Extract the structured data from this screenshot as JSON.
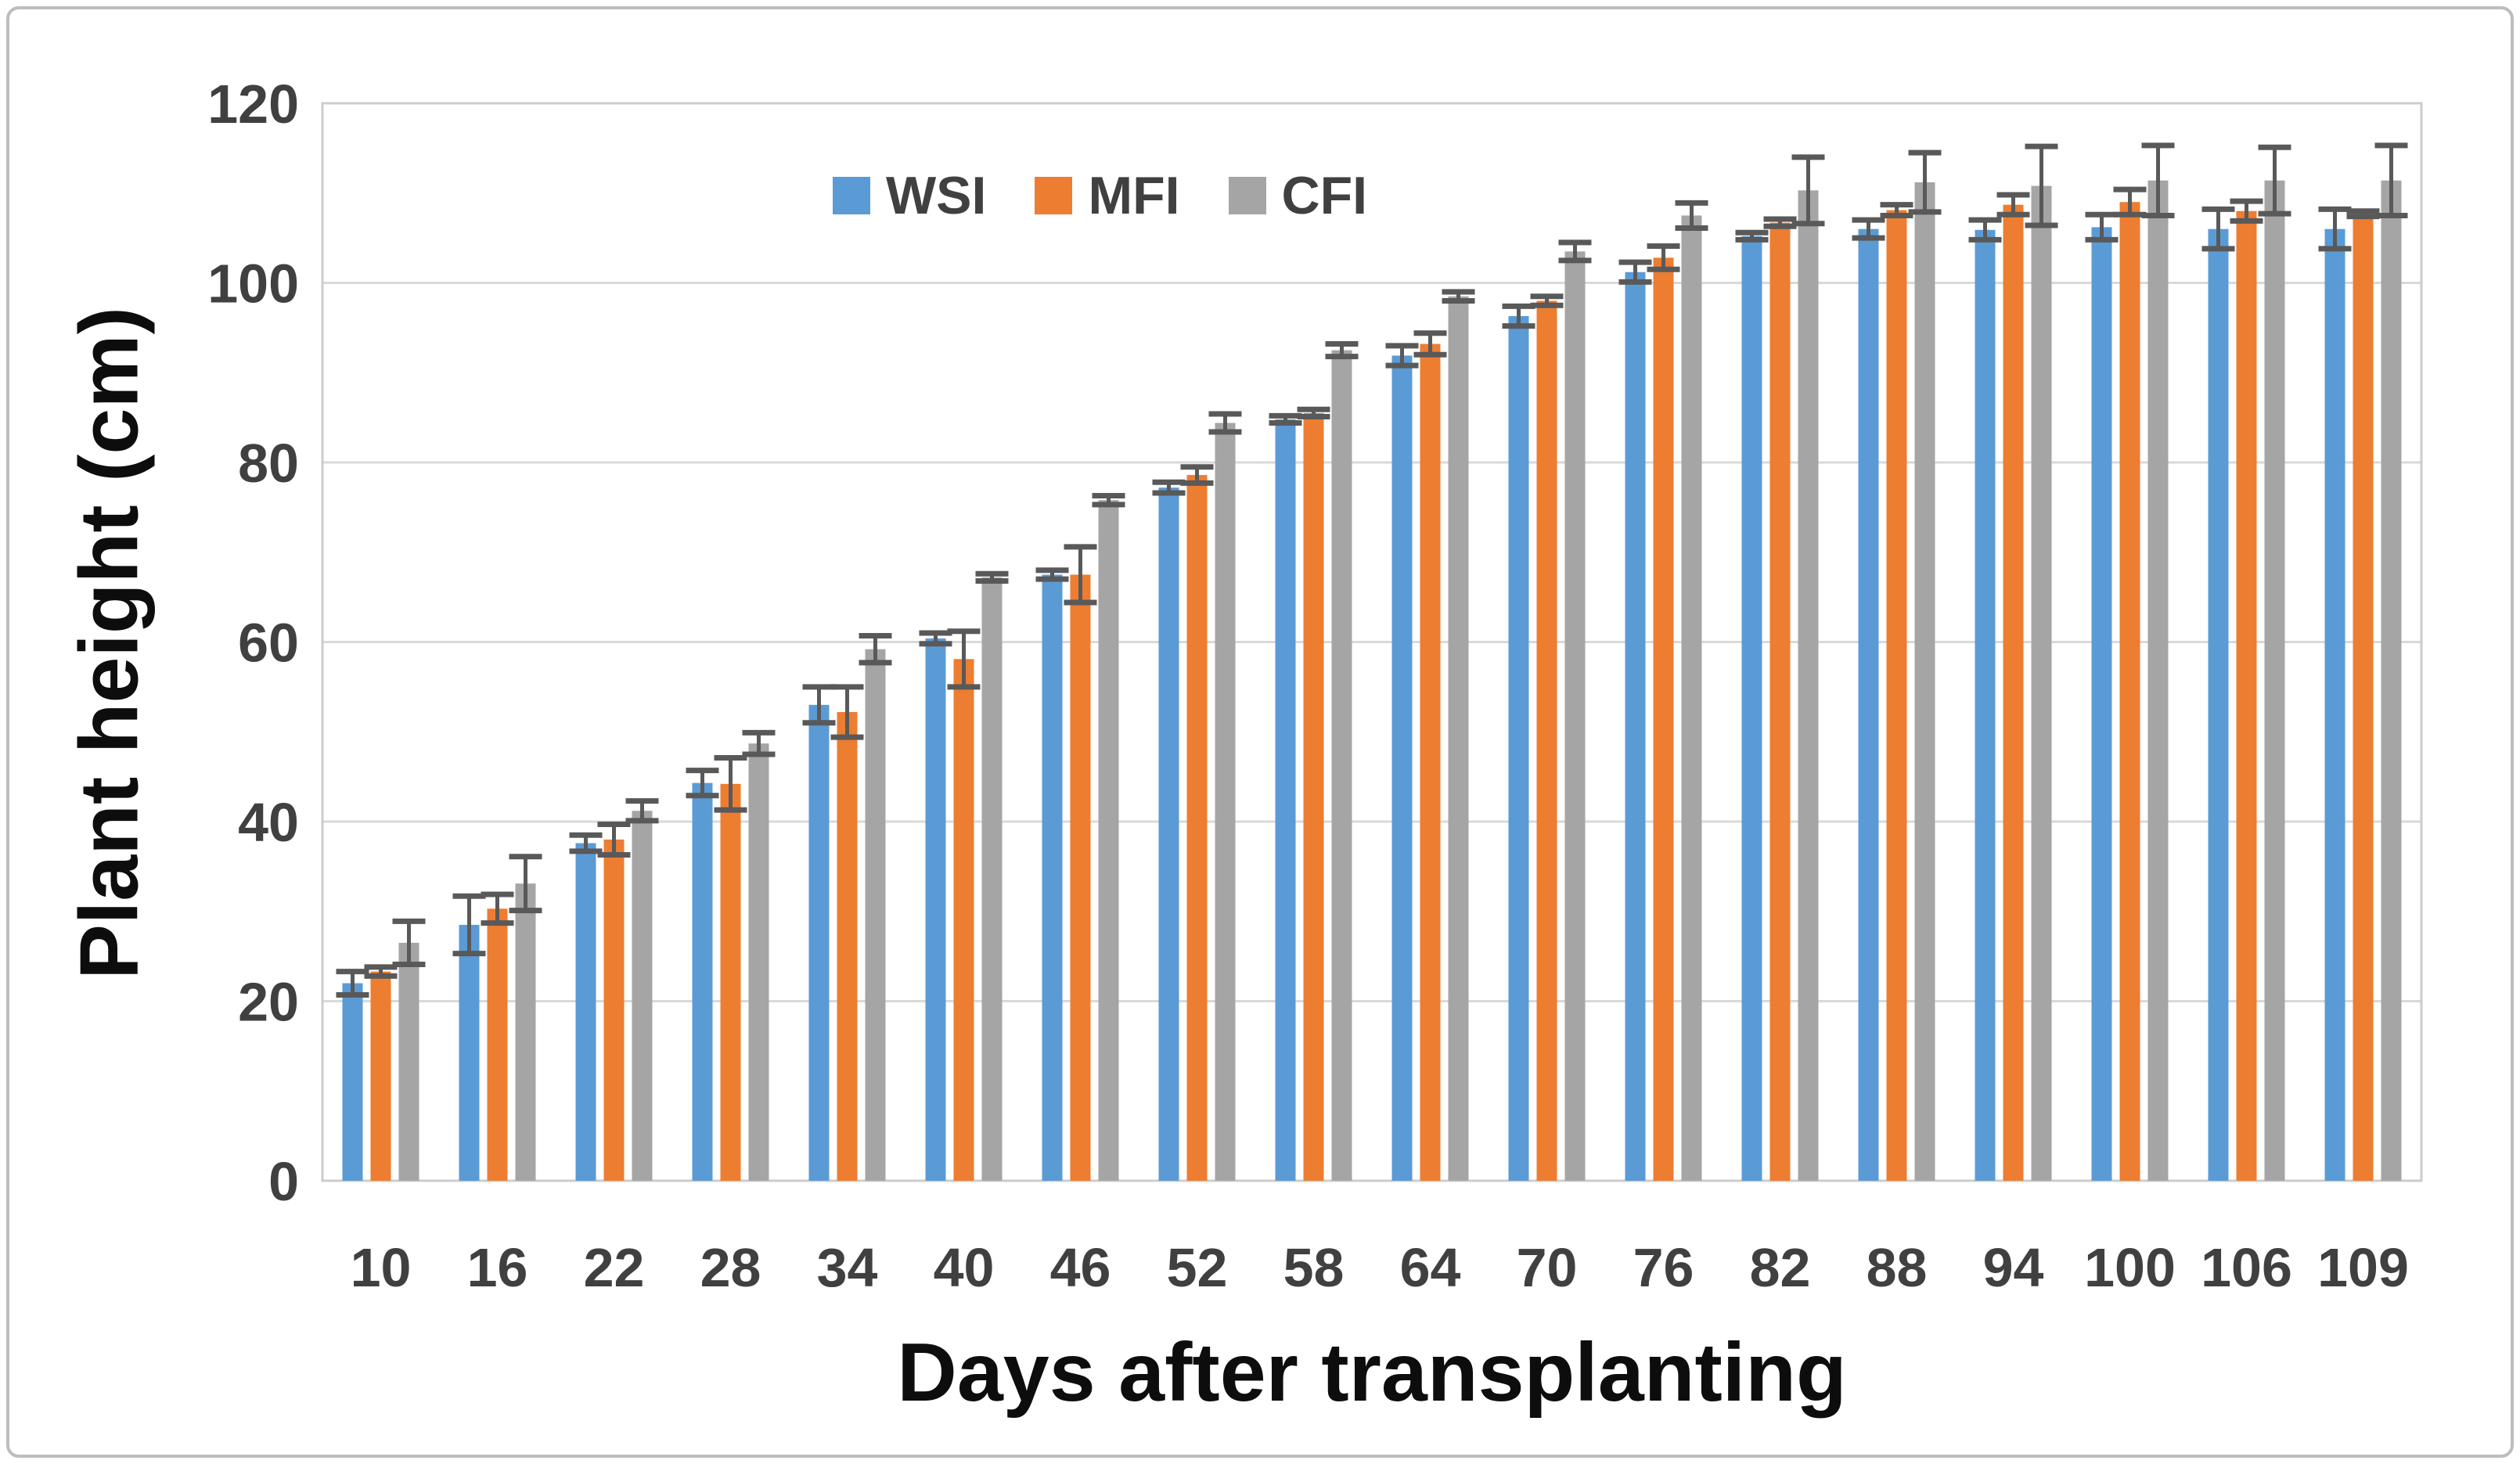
{
  "figure": {
    "border_color": "#bdbdbd",
    "background_color": "#ffffff"
  },
  "chart_data": {
    "type": "bar",
    "title": "",
    "xlabel": "Days after transplanting",
    "ylabel": "Plant height (cm)",
    "ylim": [
      0,
      120
    ],
    "yticks": [
      0,
      20,
      40,
      60,
      80,
      100,
      120
    ],
    "grid": true,
    "legend_position": "top-center-inside",
    "gridline_color": "#d9d9d9",
    "plot_border_color": "#cccccc",
    "error_bar_color": "#595959",
    "tick_label_color": "#404040",
    "categories": [
      "10",
      "16",
      "22",
      "28",
      "34",
      "40",
      "46",
      "52",
      "58",
      "64",
      "70",
      "76",
      "82",
      "88",
      "94",
      "100",
      "106",
      "109"
    ],
    "series": [
      {
        "name": "WSI",
        "color": "#5b9bd5",
        "values": [
          22.0,
          28.5,
          37.6,
          44.3,
          53.0,
          60.4,
          67.5,
          77.2,
          84.8,
          91.9,
          96.3,
          101.2,
          105.2,
          106.0,
          105.9,
          106.2,
          106.0,
          106.0
        ],
        "errors": [
          1.3,
          3.2,
          0.9,
          1.4,
          2.0,
          0.6,
          0.5,
          0.6,
          0.4,
          1.1,
          1.1,
          1.1,
          0.4,
          1.0,
          1.1,
          1.4,
          2.2,
          2.2
        ]
      },
      {
        "name": "MFI",
        "color": "#ed7d31",
        "values": [
          23.3,
          30.3,
          38.0,
          44.2,
          52.2,
          58.1,
          67.5,
          78.6,
          85.5,
          93.2,
          98.0,
          102.8,
          106.7,
          108.1,
          108.7,
          109.0,
          108.0,
          107.7
        ],
        "errors": [
          0.5,
          1.6,
          1.7,
          2.9,
          2.8,
          3.1,
          3.1,
          0.9,
          0.4,
          1.2,
          0.5,
          1.3,
          0.4,
          0.6,
          1.1,
          1.4,
          1.1,
          0.3
        ]
      },
      {
        "name": "CFI",
        "color": "#a5a5a5",
        "values": [
          26.5,
          33.1,
          41.2,
          48.7,
          59.2,
          67.2,
          75.8,
          84.4,
          92.5,
          98.5,
          103.5,
          107.5,
          110.3,
          111.2,
          110.8,
          111.4,
          111.4,
          111.4
        ],
        "errors": [
          2.4,
          3.0,
          1.1,
          1.2,
          1.5,
          0.4,
          0.5,
          1.0,
          0.7,
          0.5,
          1.0,
          1.4,
          3.7,
          3.3,
          4.4,
          3.9,
          3.7,
          3.9
        ]
      }
    ]
  }
}
